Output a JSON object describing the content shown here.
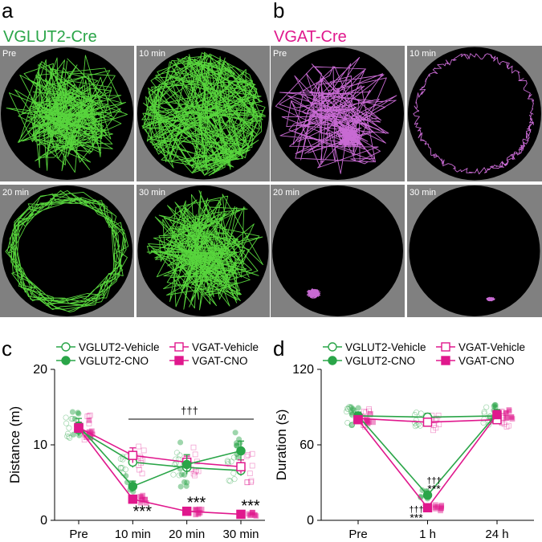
{
  "colors": {
    "vglut2": "#2aa548",
    "vgat": "#e0188d",
    "vgat_track": "#c86ad3",
    "vglut2_track": "#57d43c",
    "arena_bg": "#808080",
    "arena": "#000000"
  },
  "panel_a": {
    "letter": "a",
    "title": "VGLUT2-Cre",
    "arenas": [
      {
        "label": "Pre"
      },
      {
        "label": "10 min"
      },
      {
        "label": "20 min"
      },
      {
        "label": "30 min"
      }
    ]
  },
  "panel_b": {
    "letter": "b",
    "title": "VGAT-Cre",
    "arenas": [
      {
        "label": "Pre"
      },
      {
        "label": "10 min"
      },
      {
        "label": "20 min"
      },
      {
        "label": "30 min"
      }
    ]
  },
  "chart_data": [
    {
      "panel": "c",
      "type": "line",
      "ylabel": "Distance (m)",
      "xlabel": "",
      "categories": [
        "Pre",
        "10 min",
        "20 min",
        "30 min"
      ],
      "ylim": [
        0,
        20
      ],
      "yticks": [
        0,
        10,
        20
      ],
      "legend": [
        "VGLUT2-Vehicle",
        "VGAT-Vehicle",
        "VGLUT2-CNO",
        "VGAT-CNO"
      ],
      "series": [
        {
          "name": "VGLUT2-Vehicle",
          "values": [
            12.0,
            7.7,
            7.0,
            6.6
          ],
          "errors": [
            0.8,
            0.7,
            0.8,
            0.7
          ]
        },
        {
          "name": "VGAT-Vehicle",
          "values": [
            12.3,
            8.6,
            7.7,
            7.1
          ],
          "errors": [
            0.7,
            1.0,
            0.8,
            0.9
          ]
        },
        {
          "name": "VGLUT2-CNO",
          "values": [
            12.5,
            4.5,
            7.4,
            9.2
          ],
          "errors": [
            1.0,
            0.7,
            1.3,
            1.3
          ]
        },
        {
          "name": "VGAT-CNO",
          "values": [
            12.2,
            2.8,
            1.2,
            0.8
          ],
          "errors": [
            0.6,
            0.2,
            0.2,
            0.1
          ]
        }
      ],
      "annotations": {
        "bracket": "†††",
        "stars": [
          "***",
          "***",
          "***"
        ]
      }
    },
    {
      "panel": "d",
      "type": "line",
      "ylabel": "Duration (s)",
      "xlabel": "",
      "categories": [
        "Pre",
        "1 h",
        "24 h"
      ],
      "ylim": [
        0,
        120
      ],
      "yticks": [
        0,
        60,
        120
      ],
      "legend": [
        "VGLUT2-Vehicle",
        "VGAT-Vehicle",
        "VGLUT2-CNO",
        "VGAT-CNO"
      ],
      "series": [
        {
          "name": "VGLUT2-Vehicle",
          "values": [
            83,
            82,
            83
          ],
          "errors": [
            3,
            3,
            3
          ]
        },
        {
          "name": "VGAT-Vehicle",
          "values": [
            81,
            78,
            80
          ],
          "errors": [
            3,
            3,
            3
          ]
        },
        {
          "name": "VGLUT2-CNO",
          "values": [
            83,
            20,
            85
          ],
          "errors": [
            3,
            2,
            3
          ]
        },
        {
          "name": "VGAT-CNO",
          "values": [
            80,
            10,
            84
          ],
          "errors": [
            2,
            1,
            2
          ]
        }
      ],
      "annotations": {
        "upper": "†††",
        "upper_stars": "***",
        "lower": "†††",
        "lower_stars": "***"
      }
    }
  ]
}
